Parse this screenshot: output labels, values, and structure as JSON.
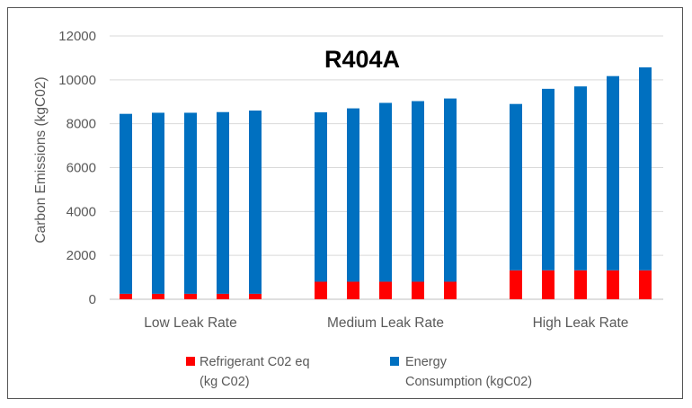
{
  "chart_data": {
    "type": "bar",
    "stacked": true,
    "title": "R404A",
    "ylabel": "Carbon Emissions (kgC02)",
    "xlabel": "",
    "ylim": [
      0,
      12000
    ],
    "yticks": [
      0,
      2000,
      4000,
      6000,
      8000,
      10000,
      12000
    ],
    "grid": true,
    "legend_position": "bottom",
    "groups": [
      "Low Leak Rate",
      "Medium Leak Rate",
      "High Leak Rate"
    ],
    "bars_per_group": 5,
    "series": [
      {
        "name_lines": [
          "Refrigerant C02 eq",
          "(kg C02)"
        ],
        "color": "#ff0000",
        "values": [
          250,
          250,
          250,
          250,
          250,
          800,
          800,
          800,
          800,
          800,
          1320,
          1320,
          1320,
          1320,
          1320
        ]
      },
      {
        "name_lines": [
          "Energy",
          "Consumption (kgC02)"
        ],
        "color": "#0070c0",
        "values": [
          8200,
          8250,
          8250,
          8280,
          8350,
          7720,
          7900,
          8150,
          8230,
          8350,
          7580,
          8270,
          8380,
          8850,
          9250
        ]
      }
    ]
  }
}
